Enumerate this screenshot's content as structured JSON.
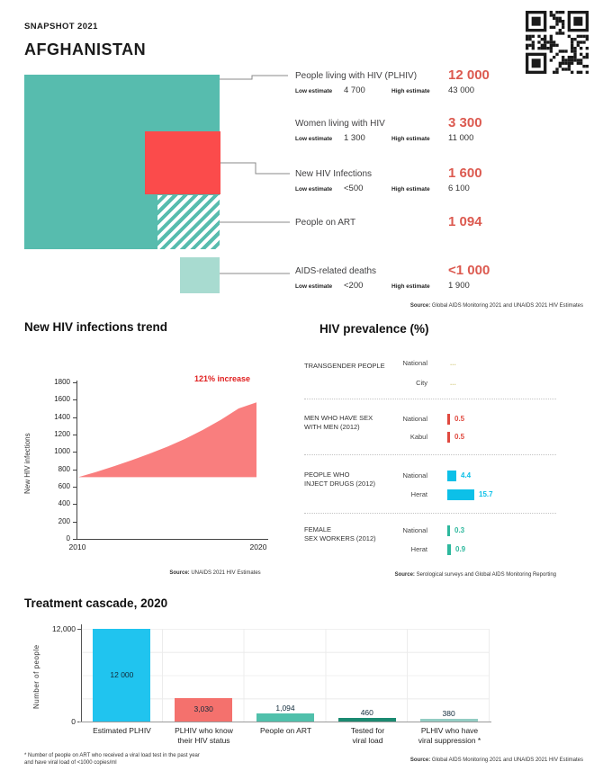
{
  "header": {
    "snapshot": "SNAPSHOT 2021",
    "country": "AFGHANISTAN"
  },
  "key_stats": {
    "low_label": "Low estimate",
    "high_label": "High estimate",
    "items": [
      {
        "label": "People living with HIV (PLHIV)",
        "value": "12 000",
        "low": "4 700",
        "high": "43 000"
      },
      {
        "label": "Women living with HIV",
        "value": "3 300",
        "low": "1 300",
        "high": "11 000"
      },
      {
        "label": "New HIV Infections",
        "value": "1 600",
        "low": "<500",
        "high": "6 100"
      },
      {
        "label": "People on ART",
        "value": "1 094"
      },
      {
        "label": "AIDS-related deaths",
        "value": "<1 000",
        "low": "<200",
        "high": "1 900"
      }
    ],
    "accent_color": "#dc5a50",
    "square_colors": {
      "plhiv": "#57bcae",
      "new_infections": "#fb4b4b",
      "art_hatch": "#57bcae",
      "deaths": "#a8dbd0"
    }
  },
  "sources": {
    "label": "Source:",
    "key_stats": " Global AIDS Monitoring 2021 and UNAIDS 2021 HIV Estimates",
    "trend": " UNAIDS 2021 HIV Estimates",
    "prevalence": " Serological surveys and Global AIDS Monitoring Reporting",
    "cascade": " Global AIDS Monitoring 2021 and UNAIDS 2021 HIV Estimates"
  },
  "chart_data": [
    {
      "type": "area",
      "title": "New HIV infections trend",
      "ylabel": "New HIV infections",
      "x": [
        2010,
        2011,
        2012,
        2013,
        2014,
        2015,
        2016,
        2017,
        2018,
        2019,
        2020
      ],
      "values": [
        710,
        770,
        835,
        905,
        980,
        1060,
        1150,
        1255,
        1370,
        1500,
        1570
      ],
      "baseline": 710,
      "ylim": [
        0,
        1800
      ],
      "yticks": [
        "1800",
        "1600",
        "1400",
        "1200",
        "1000",
        "800",
        "600",
        "400",
        "200",
        "0"
      ],
      "xticks": [
        "2010",
        "2020"
      ],
      "annotation": "121% increase",
      "annotation_color": "#e01e1e",
      "fill_color": "#f97e7e",
      "grid": false,
      "legend": "none"
    },
    {
      "type": "bar",
      "orientation": "horizontal",
      "title": "HIV prevalence (%)",
      "groups": [
        {
          "label_line1": "TRANSGENDER PEOPLE",
          "label_line2": "",
          "color": "#d8d08b",
          "rows": [
            {
              "loc": "National",
              "display": "...",
              "value": null
            },
            {
              "loc": "City",
              "display": "...",
              "value": null
            }
          ]
        },
        {
          "label_line1": "MEN WHO HAVE SEX",
          "label_line2": "WITH MEN (2012)",
          "color": "#e0493f",
          "rows": [
            {
              "loc": "National",
              "display": "0.5",
              "value": 0.5
            },
            {
              "loc": "Kabul",
              "display": "0.5",
              "value": 0.5
            }
          ]
        },
        {
          "label_line1": "PEOPLE WHO",
          "label_line2": "INJECT DRUGS (2012)",
          "color": "#0cc0e8",
          "rows": [
            {
              "loc": "National",
              "display": "4.4",
              "value": 4.4
            },
            {
              "loc": "Herat",
              "display": "15.7",
              "value": 15.7
            }
          ]
        },
        {
          "label_line1": "FEMALE",
          "label_line2": "SEX WORKERS (2012)",
          "color": "#2db89d",
          "rows": [
            {
              "loc": "National",
              "display": "0.3",
              "value": 0.3
            },
            {
              "loc": "Herat",
              "display": "0.9",
              "value": 0.9
            }
          ]
        }
      ]
    },
    {
      "type": "bar",
      "title": "Treatment cascade, 2020",
      "ylabel": "Number of people",
      "ylim": [
        0,
        12000
      ],
      "yticks": [
        "12,000",
        "0"
      ],
      "categories_line1": [
        "Estimated PLHIV",
        "PLHIV who know",
        "People on ART",
        "Tested for",
        "PLHIV who have"
      ],
      "categories_line2": [
        "",
        "their HIV status",
        "",
        "viral load",
        "viral suppression *"
      ],
      "values": [
        12000,
        3030,
        1094,
        460,
        380
      ],
      "value_labels": [
        "12 000",
        "3,030",
        "1,094",
        "460",
        "380"
      ],
      "colors": [
        "#20c4ef",
        "#f4716d",
        "#50c0ab",
        "#1b8a71",
        "#93cdc3"
      ],
      "footnote_line1": "* Number of people on ART who received a viral load test in the past year",
      "footnote_line2": "and have viral load of <1000 copies/ml"
    }
  ]
}
